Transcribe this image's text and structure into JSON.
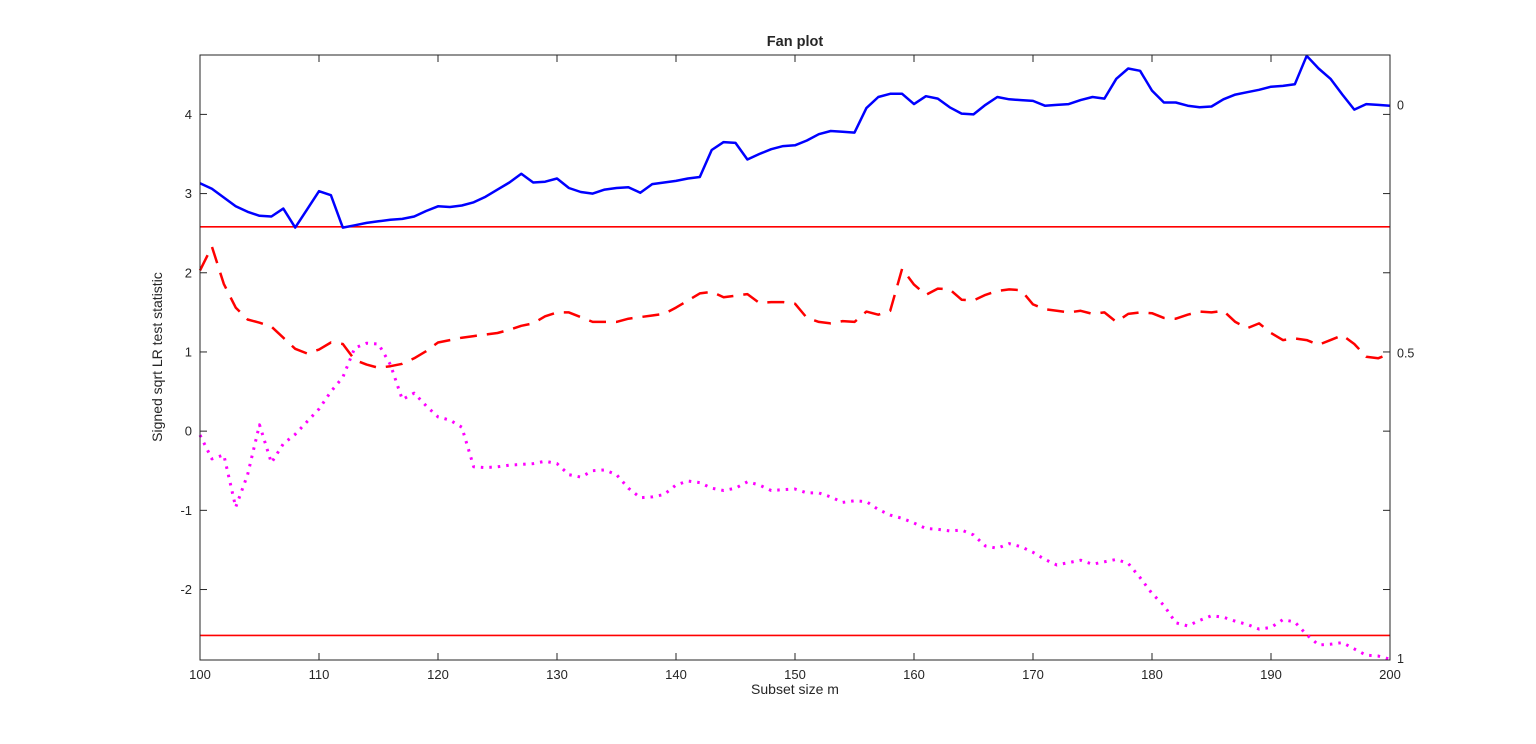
{
  "figure": {
    "background": "#ffffff"
  },
  "chart_data": {
    "type": "line",
    "title": "Fan plot",
    "xlabel": "Subset size m",
    "ylabel": "Signed sqrt LR test statistic",
    "xlim": [
      100,
      200
    ],
    "ylim": [
      -2.89,
      4.75
    ],
    "xticks": [
      100,
      110,
      120,
      130,
      140,
      150,
      160,
      170,
      180,
      190,
      200
    ],
    "yticks": [
      -2,
      -1,
      0,
      1,
      2,
      3,
      4
    ],
    "grid": false,
    "legend_position": "none",
    "axis_color": "#262626",
    "confidence_bands": {
      "values": [
        2.58,
        -2.58
      ],
      "color": "#ff0000"
    },
    "x_start": 100,
    "x_step": 1,
    "series": [
      {
        "name": "0",
        "end_label": "0",
        "style": "solid",
        "color": "#0000ff",
        "values": [
          3.13,
          3.06,
          2.95,
          2.84,
          2.77,
          2.72,
          2.71,
          2.81,
          2.57,
          2.8,
          3.03,
          2.98,
          2.57,
          2.6,
          2.63,
          2.65,
          2.67,
          2.68,
          2.71,
          2.78,
          2.84,
          2.83,
          2.85,
          2.89,
          2.96,
          3.05,
          3.14,
          3.25,
          3.14,
          3.15,
          3.19,
          3.07,
          3.02,
          3.0,
          3.05,
          3.07,
          3.08,
          3.01,
          3.12,
          3.14,
          3.16,
          3.19,
          3.21,
          3.55,
          3.65,
          3.64,
          3.43,
          3.5,
          3.56,
          3.6,
          3.61,
          3.67,
          3.75,
          3.79,
          3.78,
          3.77,
          4.08,
          4.22,
          4.26,
          4.26,
          4.13,
          4.23,
          4.2,
          4.09,
          4.01,
          4.0,
          4.12,
          4.22,
          4.19,
          4.18,
          4.17,
          4.11,
          4.12,
          4.13,
          4.18,
          4.22,
          4.2,
          4.45,
          4.58,
          4.55,
          4.3,
          4.15,
          4.15,
          4.11,
          4.09,
          4.1,
          4.19,
          4.25,
          4.28,
          4.31,
          4.35,
          4.36,
          4.38,
          4.74,
          4.58,
          4.45,
          4.25,
          4.06,
          4.13,
          4.12,
          4.11
        ]
      },
      {
        "name": "0.5",
        "end_label": "0.5",
        "style": "dashed",
        "color": "#ff0000",
        "values": [
          2.03,
          2.33,
          1.86,
          1.56,
          1.41,
          1.37,
          1.32,
          1.18,
          1.04,
          0.98,
          1.03,
          1.12,
          1.1,
          0.9,
          0.84,
          0.8,
          0.82,
          0.85,
          0.92,
          1.01,
          1.12,
          1.15,
          1.18,
          1.2,
          1.22,
          1.24,
          1.28,
          1.33,
          1.36,
          1.45,
          1.5,
          1.5,
          1.44,
          1.38,
          1.38,
          1.38,
          1.42,
          1.44,
          1.46,
          1.48,
          1.56,
          1.65,
          1.74,
          1.76,
          1.69,
          1.71,
          1.73,
          1.62,
          1.63,
          1.63,
          1.61,
          1.43,
          1.38,
          1.36,
          1.39,
          1.38,
          1.51,
          1.47,
          1.52,
          2.05,
          1.85,
          1.72,
          1.8,
          1.79,
          1.66,
          1.65,
          1.72,
          1.77,
          1.79,
          1.78,
          1.6,
          1.54,
          1.52,
          1.5,
          1.52,
          1.48,
          1.5,
          1.38,
          1.48,
          1.5,
          1.49,
          1.43,
          1.42,
          1.47,
          1.51,
          1.5,
          1.52,
          1.38,
          1.3,
          1.36,
          1.24,
          1.15,
          1.17,
          1.15,
          1.09,
          1.15,
          1.21,
          1.1,
          0.94,
          0.92,
          0.98
        ]
      },
      {
        "name": "1",
        "end_label": "1",
        "style": "dotted",
        "color": "#ff00ff",
        "values": [
          -0.05,
          -0.35,
          -0.3,
          -0.96,
          -0.55,
          0.08,
          -0.4,
          -0.16,
          -0.04,
          0.12,
          0.28,
          0.5,
          0.68,
          1.05,
          1.11,
          1.1,
          0.84,
          0.4,
          0.48,
          0.32,
          0.18,
          0.14,
          0.05,
          -0.45,
          -0.46,
          -0.45,
          -0.43,
          -0.42,
          -0.41,
          -0.38,
          -0.41,
          -0.55,
          -0.58,
          -0.5,
          -0.49,
          -0.55,
          -0.72,
          -0.84,
          -0.83,
          -0.8,
          -0.68,
          -0.63,
          -0.65,
          -0.72,
          -0.75,
          -0.72,
          -0.64,
          -0.68,
          -0.75,
          -0.74,
          -0.73,
          -0.78,
          -0.78,
          -0.83,
          -0.9,
          -0.88,
          -0.89,
          -0.99,
          -1.06,
          -1.1,
          -1.16,
          -1.23,
          -1.24,
          -1.26,
          -1.25,
          -1.31,
          -1.45,
          -1.48,
          -1.42,
          -1.46,
          -1.53,
          -1.62,
          -1.69,
          -1.66,
          -1.63,
          -1.68,
          -1.65,
          -1.62,
          -1.67,
          -1.85,
          -2.05,
          -2.2,
          -2.42,
          -2.46,
          -2.39,
          -2.33,
          -2.35,
          -2.4,
          -2.44,
          -2.5,
          -2.48,
          -2.38,
          -2.41,
          -2.57,
          -2.7,
          -2.69,
          -2.67,
          -2.75,
          -2.83,
          -2.84,
          -2.88
        ]
      }
    ]
  }
}
